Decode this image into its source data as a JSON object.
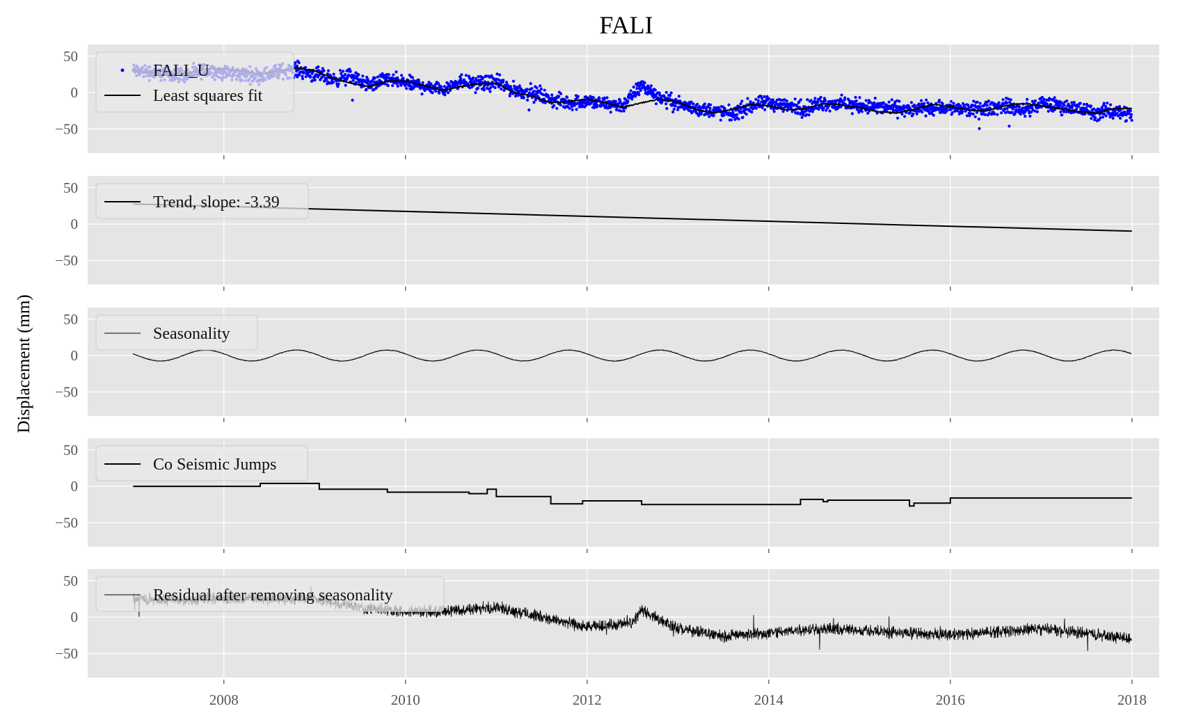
{
  "chart_data": {
    "type": "line",
    "title": "FALI",
    "ylabel": "Displacement (mm)",
    "xlim": [
      2006.5,
      2018.3
    ],
    "ylim": [
      -83,
      66
    ],
    "x_ticks": [
      2008,
      2010,
      2012,
      2014,
      2016,
      2018
    ],
    "y_ticks": [
      -50,
      0,
      50
    ],
    "grid": true,
    "panels": [
      {
        "id": "observations",
        "legend": [
          "FALI_U",
          "Least squares fit"
        ],
        "series": [
          {
            "name": "FALI_U",
            "kind": "scatter",
            "color": "#0000ff",
            "x": [
              2007.0,
              2007.2,
              2007.4,
              2007.6,
              2007.8,
              2008.0,
              2008.2,
              2008.4,
              2008.6,
              2008.8,
              2009.0,
              2009.2,
              2009.4,
              2009.6,
              2009.8,
              2010.0,
              2010.2,
              2010.4,
              2010.6,
              2010.8,
              2011.0,
              2011.2,
              2011.4,
              2011.6,
              2011.8,
              2012.0,
              2012.2,
              2012.4,
              2012.6,
              2012.8,
              2013.0,
              2013.2,
              2013.4,
              2013.6,
              2013.8,
              2014.0,
              2014.2,
              2014.4,
              2014.6,
              2014.8,
              2015.0,
              2015.2,
              2015.4,
              2015.6,
              2015.8,
              2016.0,
              2016.2,
              2016.4,
              2016.6,
              2016.8,
              2017.0,
              2017.2,
              2017.4,
              2017.6,
              2017.8,
              2018.0
            ],
            "y": [
              30,
              28,
              26,
              24,
              31,
              27,
              25,
              23,
              29,
              32,
              25,
              18,
              22,
              10,
              18,
              13,
              9,
              5,
              16,
              12,
              14,
              3,
              0,
              -10,
              -14,
              -12,
              -16,
              -17,
              10,
              -6,
              -16,
              -22,
              -25,
              -30,
              -18,
              -14,
              -18,
              -22,
              -14,
              -16,
              -18,
              -20,
              -21,
              -24,
              -20,
              -21,
              -24,
              -22,
              -18,
              -25,
              -15,
              -18,
              -22,
              -28,
              -25,
              -30
            ]
          },
          {
            "name": "Least squares fit",
            "kind": "line",
            "color": "#000000",
            "x": [
              2007.0,
              2007.2,
              2007.4,
              2007.6,
              2007.8,
              2008.0,
              2008.2,
              2008.4,
              2008.6,
              2008.8,
              2009.0,
              2009.2,
              2009.4,
              2009.6,
              2009.8,
              2010.0,
              2010.2,
              2010.4,
              2010.6,
              2010.8,
              2011.0,
              2011.2,
              2011.4,
              2011.6,
              2011.8,
              2012.0,
              2012.2,
              2012.4,
              2012.6,
              2012.8,
              2013.0,
              2013.2,
              2013.4,
              2013.6,
              2013.8,
              2014.0,
              2014.2,
              2014.4,
              2014.6,
              2014.8,
              2015.0,
              2015.2,
              2015.4,
              2015.6,
              2015.8,
              2016.0,
              2016.2,
              2016.4,
              2016.6,
              2016.8,
              2017.0,
              2017.2,
              2017.4,
              2017.6,
              2017.8,
              2018.0
            ],
            "y": [
              31,
              27,
              24,
              27,
              32,
              33,
              30,
              25,
              30,
              34,
              30,
              20,
              13,
              8,
              16,
              16,
              10,
              3,
              8,
              12,
              13,
              0,
              -5,
              -14,
              -12,
              -9,
              -14,
              -20,
              -14,
              -9,
              -13,
              -23,
              -28,
              -23,
              -17,
              -18,
              -24,
              -22,
              -15,
              -17,
              -21,
              -26,
              -28,
              -23,
              -16,
              -19,
              -24,
              -25,
              -18,
              -15,
              -18,
              -22,
              -26,
              -28,
              -22,
              -22
            ]
          }
        ]
      },
      {
        "id": "trend",
        "legend": [
          "Trend, slope: -3.39"
        ],
        "series": [
          {
            "name": "Trend, slope: -3.39",
            "kind": "line",
            "color": "#000000",
            "x": [
              2007.0,
              2018.0
            ],
            "y": [
              27.6,
              -9.7
            ]
          }
        ]
      },
      {
        "id": "seasonality",
        "legend": [
          "Seasonality"
        ],
        "series": [
          {
            "name": "Seasonality",
            "kind": "sine",
            "color": "#000000",
            "x_start": 2007.0,
            "x_end": 2018.0,
            "amplitude": 7.5,
            "period_years": 1.0,
            "peak_phase_year": 0.8
          }
        ]
      },
      {
        "id": "jumps",
        "legend": [
          "Co Seismic Jumps"
        ],
        "series": [
          {
            "name": "Co Seismic Jumps",
            "kind": "step",
            "color": "#000000",
            "x": [
              2007.0,
              2008.4,
              2009.05,
              2009.8,
              2010.7,
              2010.9,
              2011.0,
              2011.6,
              2011.95,
              2012.6,
              2014.35,
              2014.6,
              2014.65,
              2015.55,
              2015.6,
              2016.0,
              2018.0
            ],
            "y": [
              0,
              4,
              -4,
              -8,
              -10,
              -4,
              -14,
              -24,
              -20,
              -25,
              -18,
              -21,
              -19,
              -27,
              -23,
              -16,
              -16
            ]
          }
        ]
      },
      {
        "id": "residual",
        "legend": [
          "Residual after removing seasonality"
        ],
        "series": [
          {
            "name": "Residual after removing seasonality",
            "kind": "noisy_line",
            "color": "#000000",
            "x": [
              2007.0,
              2007.5,
              2008.0,
              2008.5,
              2009.0,
              2009.5,
              2010.0,
              2010.5,
              2011.0,
              2011.5,
              2012.0,
              2012.5,
              2012.6,
              2013.0,
              2013.5,
              2014.0,
              2014.5,
              2015.0,
              2015.5,
              2016.0,
              2016.5,
              2017.0,
              2017.5,
              2018.0
            ],
            "y": [
              25,
              24,
              26,
              25,
              26,
              13,
              8,
              8,
              14,
              0,
              -14,
              -8,
              10,
              -16,
              -26,
              -22,
              -16,
              -18,
              -22,
              -24,
              -20,
              -16,
              -22,
              -30
            ]
          }
        ]
      }
    ]
  }
}
